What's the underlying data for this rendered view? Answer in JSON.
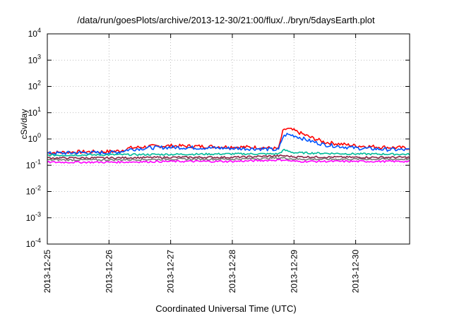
{
  "chart_data": {
    "type": "line",
    "title": "/data/run/goesPlots/archive/2013-12-30/21:00/flux/../bryn/5daysEarth.plot",
    "xlabel": "Coordinated Universal Time (UTC)",
    "ylabel": "cSv/day",
    "y_scale": "log",
    "ylim": [
      0.0001,
      10000
    ],
    "xlim": [
      "2013-12-25",
      "2013-12-30T21:00"
    ],
    "y_ticks": [
      {
        "base": "10",
        "exp": "-4",
        "value": 0.0001
      },
      {
        "base": "10",
        "exp": "-3",
        "value": 0.001
      },
      {
        "base": "10",
        "exp": "-2",
        "value": 0.01
      },
      {
        "base": "10",
        "exp": "-1",
        "value": 0.1
      },
      {
        "base": "10",
        "exp": "0",
        "value": 1
      },
      {
        "base": "10",
        "exp": "1",
        "value": 10
      },
      {
        "base": "10",
        "exp": "2",
        "value": 100
      },
      {
        "base": "10",
        "exp": "3",
        "value": 1000
      },
      {
        "base": "10",
        "exp": "4",
        "value": 10000
      }
    ],
    "x_ticks": [
      "2013-12-25",
      "2013-12-26",
      "2013-12-27",
      "2013-12-28",
      "2013-12-29",
      "2013-12-30"
    ],
    "grid": true,
    "series": [
      {
        "color": "#ff0000",
        "x": [
          "2013-12-25T00:00",
          "2013-12-25T12:00",
          "2013-12-26T00:00",
          "2013-12-26T04:00",
          "2013-12-26T08:00",
          "2013-12-26T16:00",
          "2013-12-27T00:00",
          "2013-12-27T12:00",
          "2013-12-28T00:00",
          "2013-12-28T12:00",
          "2013-12-28T18:00",
          "2013-12-28T19:30",
          "2013-12-28T21:00",
          "2013-12-29T00:00",
          "2013-12-29T06:00",
          "2013-12-29T12:00",
          "2013-12-30T00:00",
          "2013-12-30T12:00",
          "2013-12-30T21:00"
        ],
        "values": [
          0.3,
          0.32,
          0.33,
          0.35,
          0.45,
          0.52,
          0.55,
          0.52,
          0.5,
          0.47,
          0.42,
          1.8,
          2.5,
          2.1,
          1.2,
          0.75,
          0.55,
          0.48,
          0.45
        ]
      },
      {
        "color": "#0055ff",
        "x": [
          "2013-12-25T00:00",
          "2013-12-25T12:00",
          "2013-12-26T00:00",
          "2013-12-26T04:00",
          "2013-12-26T08:00",
          "2013-12-26T16:00",
          "2013-12-27T00:00",
          "2013-12-27T12:00",
          "2013-12-28T00:00",
          "2013-12-28T12:00",
          "2013-12-28T18:00",
          "2013-12-28T19:30",
          "2013-12-28T21:00",
          "2013-12-29T00:00",
          "2013-12-29T06:00",
          "2013-12-29T12:00",
          "2013-12-30T00:00",
          "2013-12-30T12:00",
          "2013-12-30T21:00"
        ],
        "values": [
          0.28,
          0.3,
          0.3,
          0.32,
          0.4,
          0.46,
          0.48,
          0.46,
          0.44,
          0.42,
          0.38,
          1.1,
          1.5,
          1.35,
          0.85,
          0.6,
          0.45,
          0.4,
          0.38
        ]
      },
      {
        "color": "#00bb99",
        "x": [
          "2013-12-25T00:00",
          "2013-12-26T00:00",
          "2013-12-27T00:00",
          "2013-12-28T00:00",
          "2013-12-28T18:00",
          "2013-12-28T20:00",
          "2013-12-29T00:00",
          "2013-12-30T00:00",
          "2013-12-30T21:00"
        ],
        "values": [
          0.24,
          0.25,
          0.26,
          0.27,
          0.27,
          0.38,
          0.3,
          0.27,
          0.26
        ]
      },
      {
        "color": "#882244",
        "x": [
          "2013-12-25T00:00",
          "2013-12-26T00:00",
          "2013-12-27T00:00",
          "2013-12-28T00:00",
          "2013-12-28T20:00",
          "2013-12-29T00:00",
          "2013-12-30T00:00",
          "2013-12-30T21:00"
        ],
        "values": [
          0.19,
          0.19,
          0.2,
          0.2,
          0.23,
          0.21,
          0.2,
          0.2
        ]
      },
      {
        "color": "#777777",
        "x": [
          "2013-12-25T00:00",
          "2013-12-26T00:00",
          "2013-12-27T00:00",
          "2013-12-28T00:00",
          "2013-12-28T20:00",
          "2013-12-29T00:00",
          "2013-12-30T00:00",
          "2013-12-30T21:00"
        ],
        "values": [
          0.16,
          0.16,
          0.17,
          0.17,
          0.19,
          0.17,
          0.17,
          0.17
        ]
      },
      {
        "color": "#ff00ff",
        "x": [
          "2013-12-25T00:00",
          "2013-12-25T15:00",
          "2013-12-26T00:00",
          "2013-12-27T00:00",
          "2013-12-28T00:00",
          "2013-12-28T20:00",
          "2013-12-29T00:00",
          "2013-12-30T00:00",
          "2013-12-30T21:00"
        ],
        "values": [
          0.13,
          0.13,
          0.13,
          0.14,
          0.14,
          0.16,
          0.14,
          0.14,
          0.14
        ]
      }
    ]
  }
}
